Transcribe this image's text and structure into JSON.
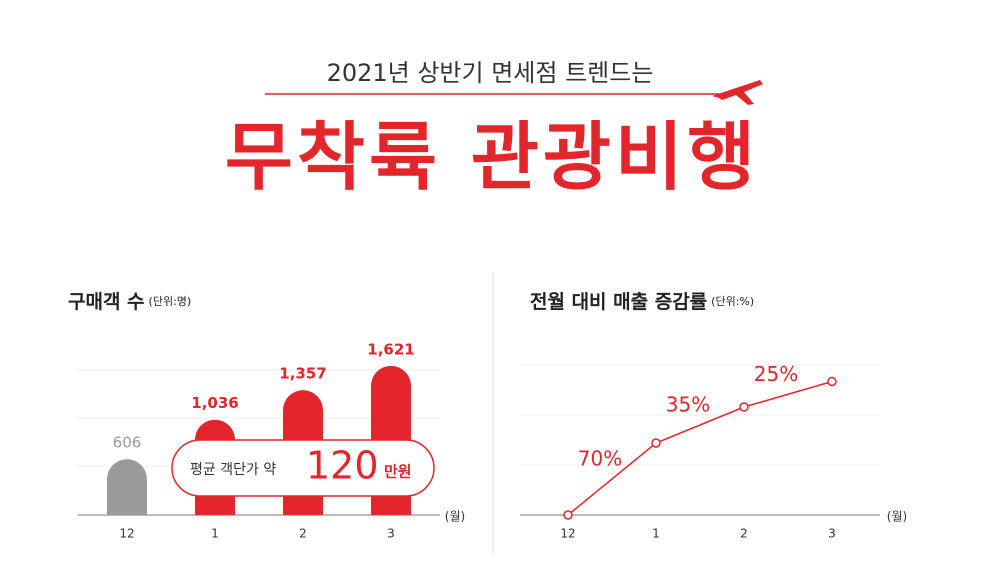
{
  "header": {
    "subtitle": "2021년 상반기 면세점 트렌드는",
    "title": "무착륙 관광비행"
  },
  "chart_data": [
    {
      "type": "bar",
      "title": "구매객 수",
      "unit": "(단위:명)",
      "x_label": "(월)",
      "categories": [
        "12",
        "1",
        "2",
        "3"
      ],
      "values": [
        606,
        1036,
        1357,
        1621
      ],
      "value_labels": [
        "606",
        "1,036",
        "1,357",
        "1,621"
      ],
      "colors": [
        "#9a9a9a",
        "#e3262b",
        "#e3262b",
        "#e3262b"
      ],
      "ylim": [
        0,
        1750
      ],
      "annotation": {
        "prefix": "평균 객단가 약",
        "value": "120",
        "suffix": "만원"
      }
    },
    {
      "type": "line",
      "title": "전월 대비 매출 증감률",
      "unit": "(단위:%)",
      "x_label": "(월)",
      "categories": [
        "12",
        "1",
        "2",
        "3"
      ],
      "values": [
        0,
        48,
        72,
        89
      ],
      "color": "#e3262b",
      "ylim": [
        0,
        100
      ],
      "growth": {
        "values": [
          70,
          35,
          25
        ],
        "value_labels": [
          "70%",
          "35%",
          "25%"
        ]
      }
    }
  ]
}
